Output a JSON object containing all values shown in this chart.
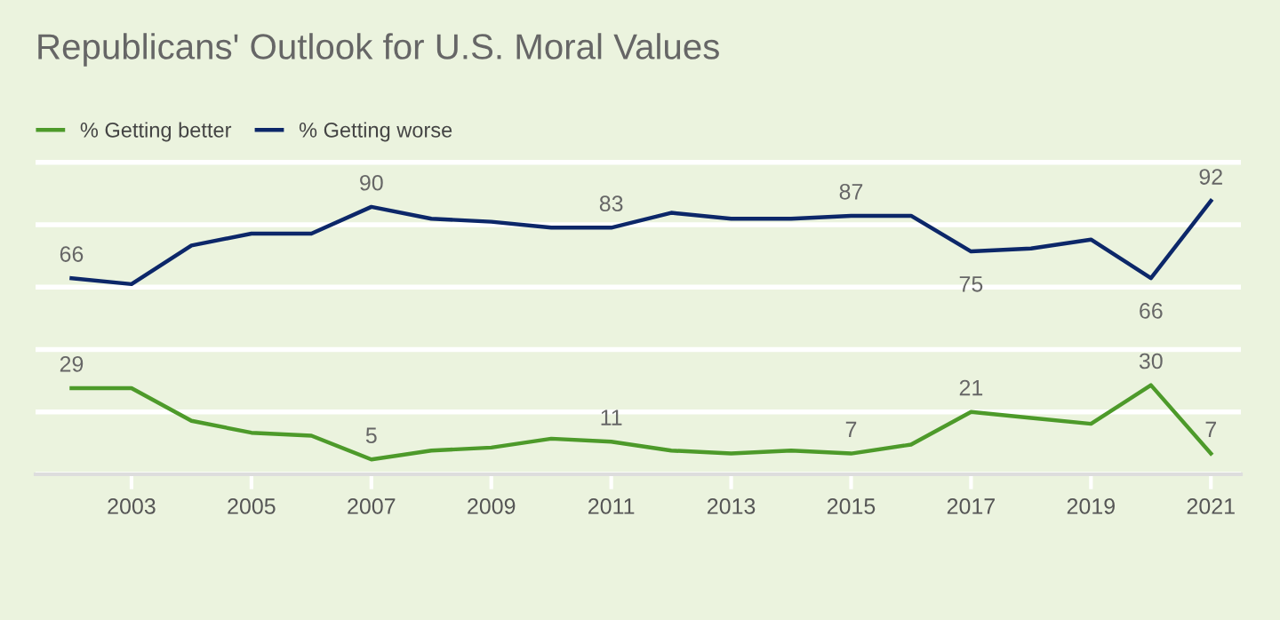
{
  "chart_data": {
    "type": "line",
    "title": "Republicans' Outlook for U.S. Moral Values",
    "x": [
      2002,
      2003,
      2004,
      2005,
      2006,
      2007,
      2008,
      2009,
      2010,
      2011,
      2012,
      2013,
      2014,
      2015,
      2016,
      2017,
      2018,
      2019,
      2020,
      2021
    ],
    "series": [
      {
        "name": "% Getting better",
        "color": "#4d9a2a",
        "values": [
          29,
          29,
          18,
          14,
          13,
          5,
          8,
          9,
          12,
          11,
          8,
          7,
          8,
          7,
          10,
          21,
          19,
          17,
          30,
          7
        ],
        "value_labels": [
          "29",
          null,
          null,
          null,
          null,
          "5",
          null,
          null,
          null,
          "11",
          null,
          null,
          null,
          "7",
          null,
          "21",
          null,
          null,
          "30",
          "7"
        ]
      },
      {
        "name": "% Getting worse",
        "color": "#0c2769",
        "values": [
          66,
          64,
          77,
          81,
          81,
          90,
          86,
          85,
          83,
          83,
          88,
          86,
          86,
          87,
          87,
          75,
          76,
          79,
          66,
          92
        ],
        "value_labels": [
          "66",
          null,
          null,
          null,
          null,
          "90",
          null,
          null,
          null,
          "83",
          null,
          null,
          null,
          "87",
          null,
          "75",
          null,
          null,
          "66",
          "92"
        ]
      }
    ],
    "xlim": [
      2001.4,
      2021.5
    ],
    "xticks": [
      2003,
      2005,
      2007,
      2009,
      2011,
      2013,
      2015,
      2017,
      2019,
      2021
    ],
    "ylim": [
      0,
      107
    ],
    "yticks": [
      {
        "value": 0,
        "label": null
      },
      {
        "value": 21,
        "label": null
      },
      {
        "value": 42,
        "label": null
      },
      {
        "value": 63,
        "label": null
      },
      {
        "value": 84,
        "label": null
      },
      {
        "value": 105,
        "label": null
      }
    ],
    "tick_labels": "x",
    "grid": "y",
    "legend": "top left",
    "marker": "none",
    "line_style": "solid"
  }
}
